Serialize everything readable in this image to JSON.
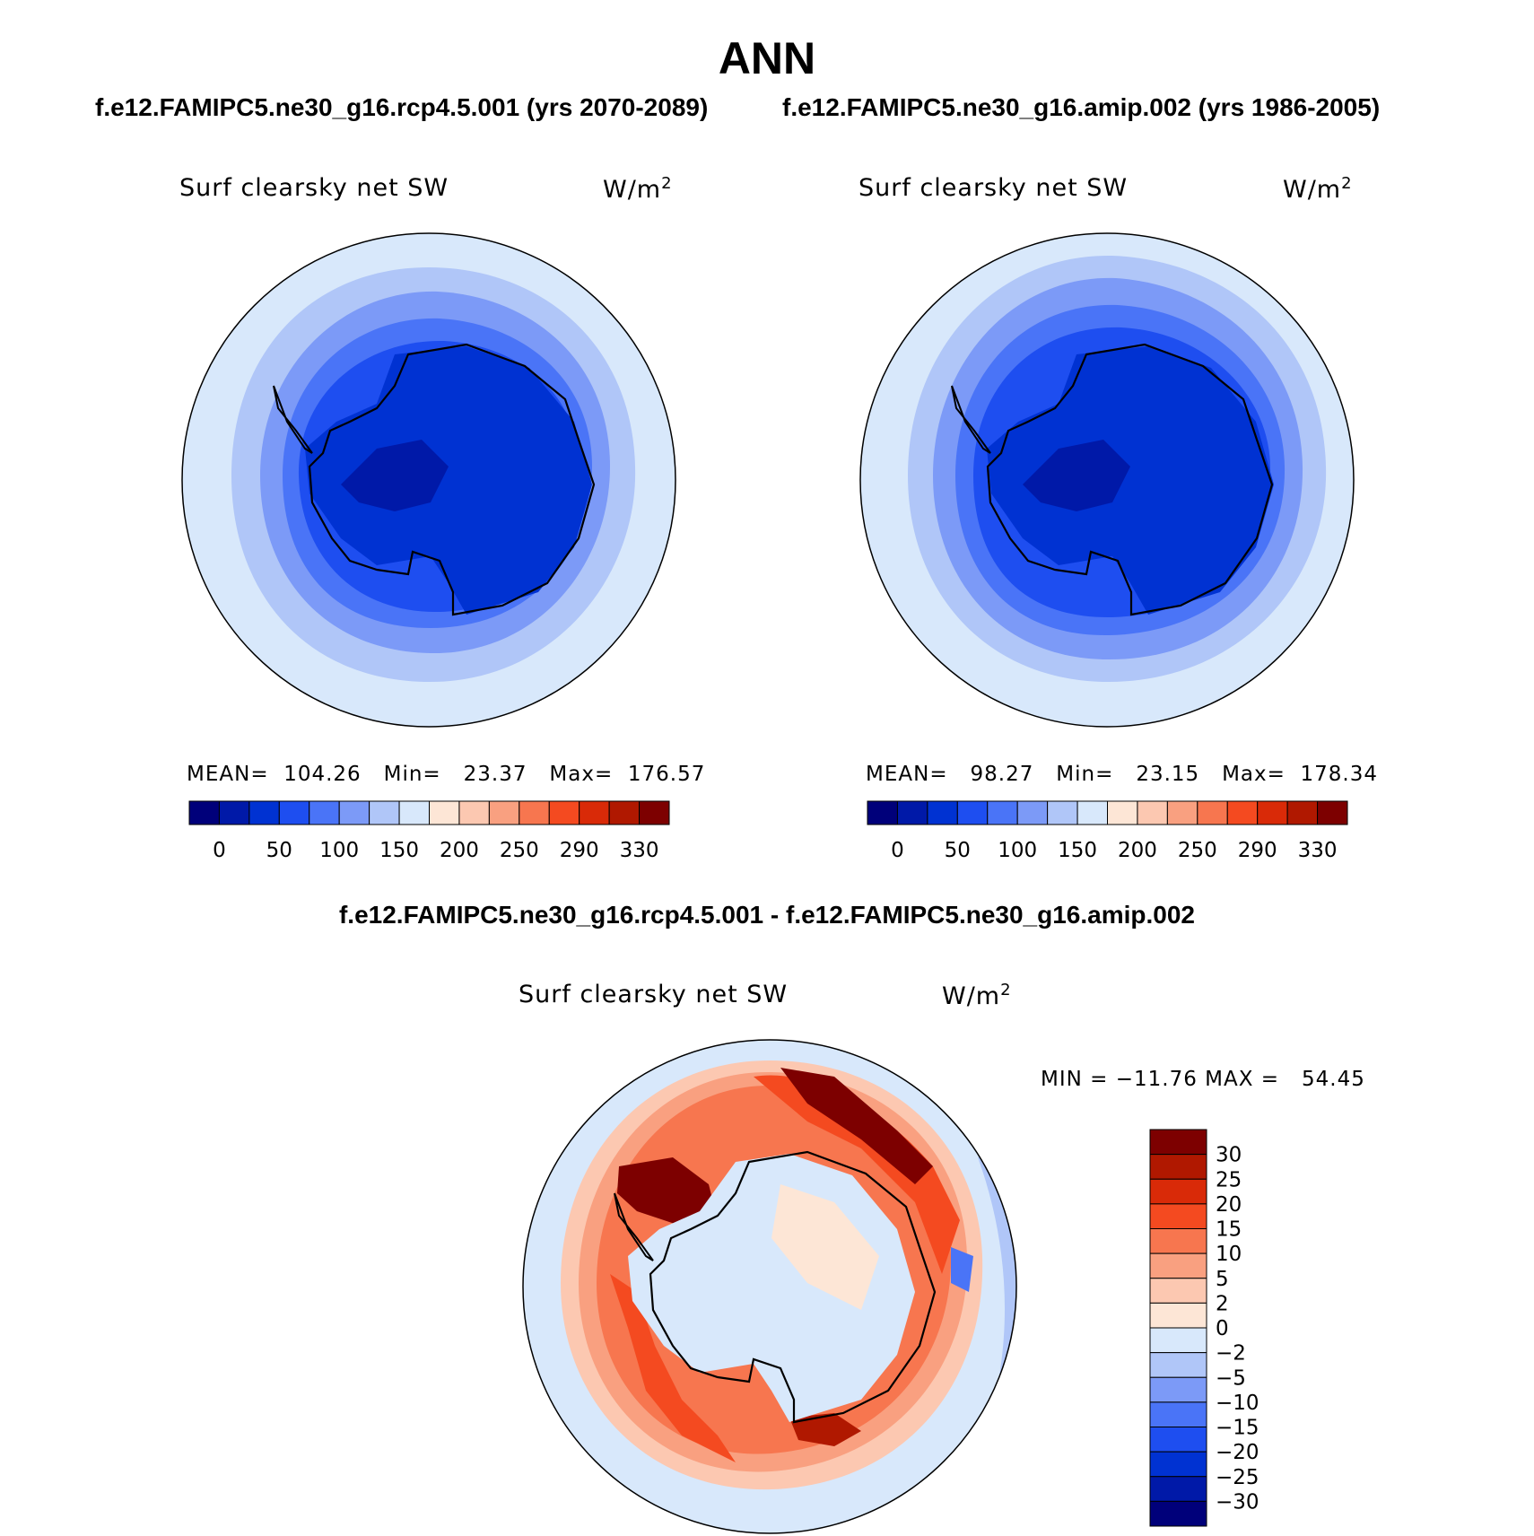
{
  "page": {
    "title": "ANN",
    "case1_label": "f.e12.FAMIPC5.ne30_g16.rcp4.5.001 (yrs 2070-2089)",
    "case2_label": "f.e12.FAMIPC5.ne30_g16.amip.002 (yrs 1986-2005)",
    "diff_label": "f.e12.FAMIPC5.ne30_g16.rcp4.5.001 - f.e12.FAMIPC5.ne30_g16.amip.002"
  },
  "panels": [
    {
      "variable": "Surf clearsky net SW",
      "units": "W/m",
      "units_sup": "2",
      "stats": "MEAN=  104.26   Min=   23.37   Max=  176.57"
    },
    {
      "variable": "Surf clearsky net SW",
      "units": "W/m",
      "units_sup": "2",
      "stats": "MEAN=   98.27   Min=   23.15   Max=  178.34"
    }
  ],
  "diff_panel": {
    "variable": "Surf clearsky net SW",
    "units": "W/m",
    "units_sup": "2",
    "stats": "MIN = −11.76 MAX =   54.45"
  },
  "colorbar_main": {
    "colors": [
      "#00007a",
      "#0019a8",
      "#0032d2",
      "#1e4ef0",
      "#4a74f7",
      "#7c9af7",
      "#b0c6f8",
      "#d8e8fb",
      "#fde6d6",
      "#fcc8b1",
      "#f9a080",
      "#f7764f",
      "#f44a20",
      "#d92a08",
      "#b01800",
      "#7d0000"
    ],
    "tick_labels": [
      "0",
      "50",
      "100",
      "150",
      "200",
      "250",
      "290",
      "330"
    ]
  },
  "colorbar_diff": {
    "colors": [
      "#7d0000",
      "#b01800",
      "#d92a08",
      "#f44a20",
      "#f7764f",
      "#f9a080",
      "#fcc8b1",
      "#fde6d6",
      "#d8e8fb",
      "#b0c6f8",
      "#7c9af7",
      "#4a74f7",
      "#1e4ef0",
      "#0032d2",
      "#0019a8",
      "#00007a"
    ],
    "tick_labels": [
      "30",
      "25",
      "20",
      "15",
      "10",
      "5",
      "2",
      "0",
      "−2",
      "−5",
      "−10",
      "−15",
      "−20",
      "−25",
      "−30"
    ]
  }
}
